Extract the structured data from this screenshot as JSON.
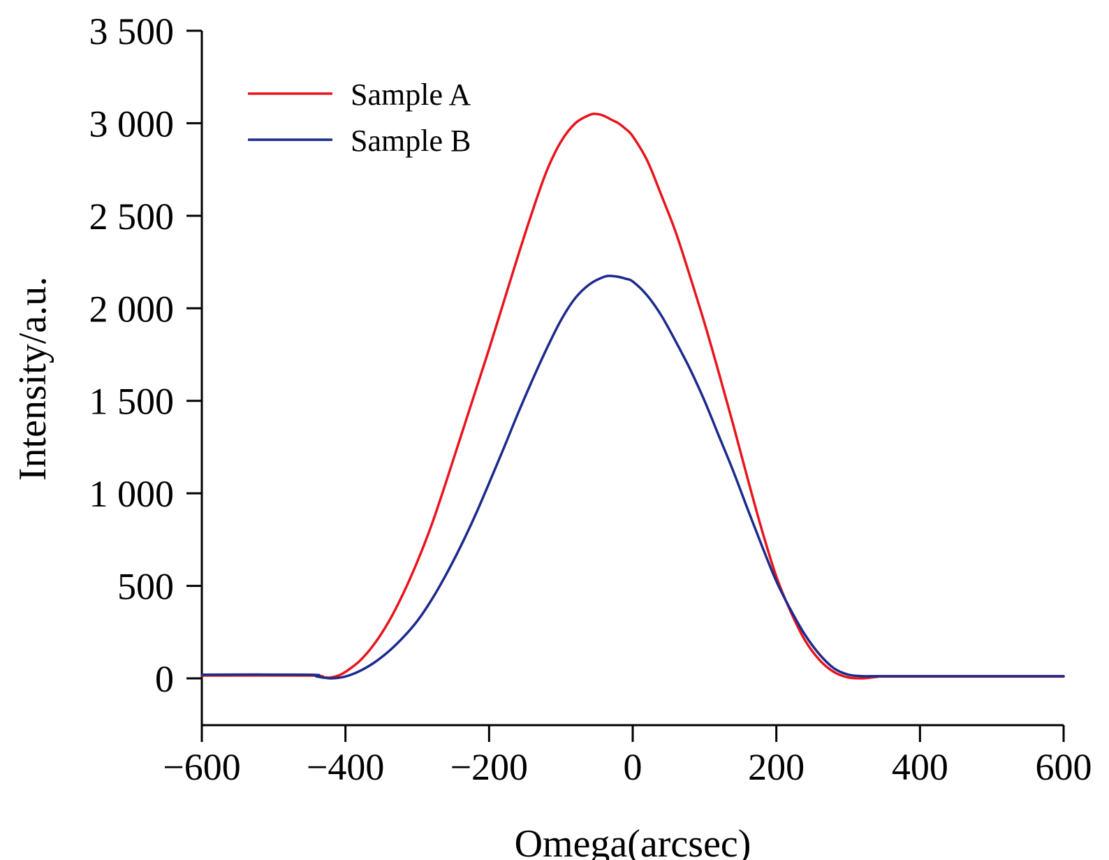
{
  "chart_data": {
    "type": "line",
    "title": "",
    "xlabel": "Omega(arcsec)",
    "ylabel": "Intensity/a.u.",
    "xlim": [
      -600,
      600
    ],
    "ylim": [
      -250,
      3500
    ],
    "xticks": [
      -600,
      -400,
      -200,
      0,
      200,
      400,
      600
    ],
    "xtick_labels": [
      "−600",
      "−400",
      "−200",
      "0",
      "200",
      "400",
      "600"
    ],
    "yticks": [
      0,
      500,
      1000,
      1500,
      2000,
      2500,
      3000,
      3500
    ],
    "ytick_labels": [
      "0",
      "500",
      "1 000",
      "1 500",
      "2 000",
      "2 500",
      "3 000",
      "3 500"
    ],
    "grid": false,
    "legend_position": "top-left",
    "series": [
      {
        "name": "Sample A",
        "color": "#e8141c",
        "x": [
          -600,
          -450,
          -430,
          -420,
          -410,
          -400,
          -380,
          -360,
          -340,
          -320,
          -300,
          -280,
          -260,
          -240,
          -220,
          -200,
          -180,
          -160,
          -140,
          -120,
          -100,
          -80,
          -60,
          -50,
          -40,
          -30,
          -20,
          -10,
          0,
          20,
          40,
          60,
          80,
          100,
          120,
          140,
          160,
          180,
          200,
          220,
          240,
          260,
          280,
          300,
          320,
          340,
          360,
          600
        ],
        "y": [
          15,
          15,
          5,
          5,
          15,
          35,
          95,
          185,
          305,
          455,
          630,
          830,
          1060,
          1300,
          1540,
          1780,
          2030,
          2280,
          2520,
          2740,
          2900,
          3000,
          3045,
          3050,
          3040,
          3020,
          3000,
          2970,
          2930,
          2800,
          2610,
          2410,
          2170,
          1920,
          1650,
          1370,
          1080,
          800,
          550,
          360,
          205,
          100,
          35,
          5,
          0,
          8,
          10,
          10
        ]
      },
      {
        "name": "Sample B",
        "color": "#1b2a8c",
        "x": [
          -600,
          -450,
          -440,
          -420,
          -400,
          -380,
          -360,
          -340,
          -320,
          -300,
          -280,
          -260,
          -240,
          -220,
          -200,
          -180,
          -160,
          -140,
          -120,
          -100,
          -80,
          -60,
          -40,
          -30,
          -20,
          -10,
          0,
          20,
          40,
          60,
          80,
          100,
          120,
          140,
          160,
          180,
          200,
          220,
          240,
          260,
          280,
          300,
          320,
          340,
          360,
          600
        ],
        "y": [
          20,
          20,
          10,
          0,
          10,
          40,
          85,
          145,
          220,
          310,
          425,
          560,
          710,
          875,
          1055,
          1240,
          1430,
          1610,
          1780,
          1935,
          2055,
          2130,
          2170,
          2175,
          2170,
          2160,
          2145,
          2070,
          1960,
          1820,
          1670,
          1500,
          1310,
          1120,
          915,
          715,
          525,
          370,
          235,
          130,
          55,
          20,
          12,
          12,
          12,
          12
        ]
      }
    ]
  }
}
